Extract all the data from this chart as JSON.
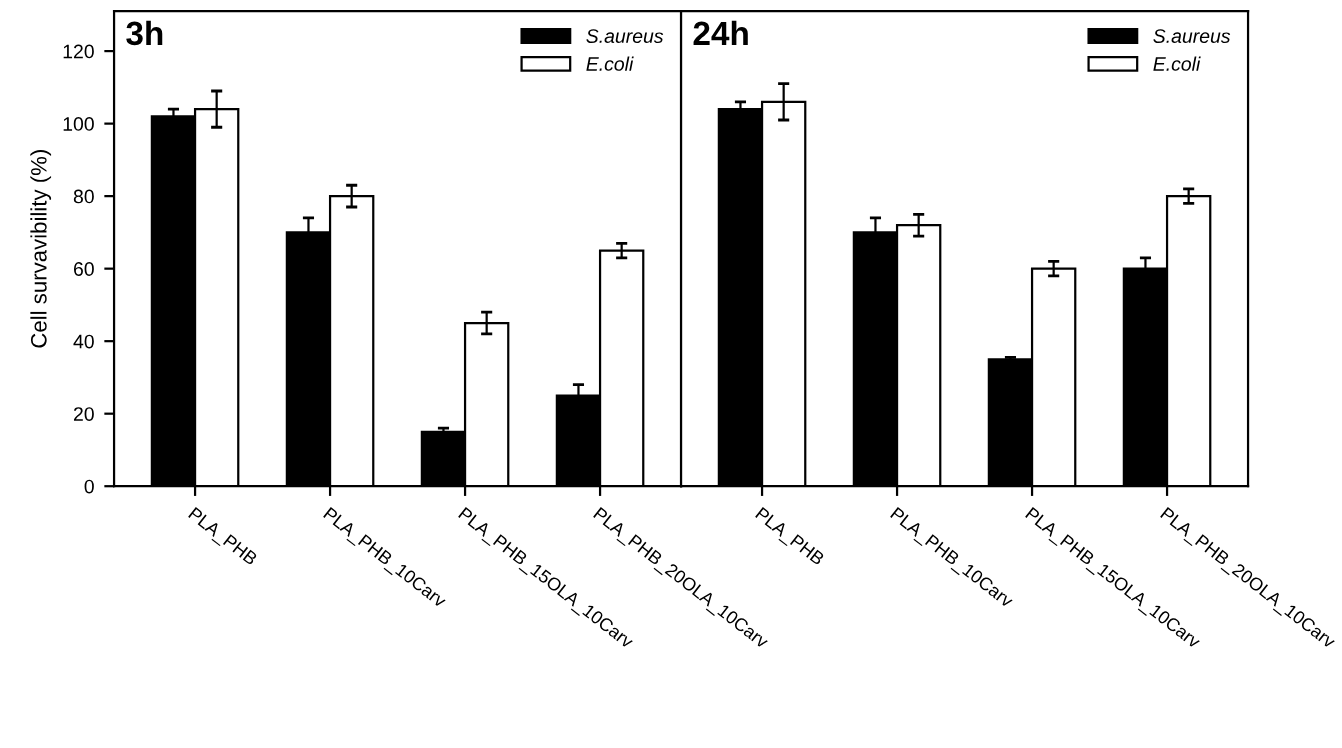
{
  "chart_data": [
    {
      "type": "bar",
      "title": "3h",
      "ylabel": "Cell survavibility (%)",
      "categories": [
        "PLA_PHB",
        "PLA_PHB_10Carv",
        "PLA_PHB_15OLA_10Carv",
        "PLA_PHB_20OLA_10Carv"
      ],
      "ylim": [
        0,
        131
      ],
      "yticks": [
        0,
        20,
        40,
        60,
        80,
        100,
        120
      ],
      "legend": "top right",
      "grid": false,
      "series": [
        {
          "name": "S.aureus",
          "color": "#000000",
          "values": [
            102,
            70,
            15,
            25
          ],
          "errors": [
            2,
            4,
            1,
            3
          ]
        },
        {
          "name": "E.coli",
          "color": "#ffffff",
          "values": [
            104,
            80,
            45,
            65
          ],
          "errors": [
            5,
            3,
            3,
            2
          ]
        }
      ]
    },
    {
      "type": "bar",
      "title": "24h",
      "categories": [
        "PLA_PHB",
        "PLA_PHB_10Carv",
        "PLA_PHB_15OLA_10Carv",
        "PLA_PHB_20OLA_10Carv"
      ],
      "ylim": [
        0,
        131
      ],
      "yticks": [
        0,
        20,
        40,
        60,
        80,
        100,
        120
      ],
      "tick_labels": "x",
      "legend": "top right",
      "grid": false,
      "series": [
        {
          "name": "S.aureus",
          "color": "#000000",
          "values": [
            104,
            70,
            35,
            60
          ],
          "errors": [
            2,
            4,
            0.5,
            3
          ]
        },
        {
          "name": "E.coli",
          "color": "#ffffff",
          "values": [
            106,
            72,
            60,
            80
          ],
          "errors": [
            5,
            3,
            2,
            2
          ]
        }
      ]
    }
  ]
}
